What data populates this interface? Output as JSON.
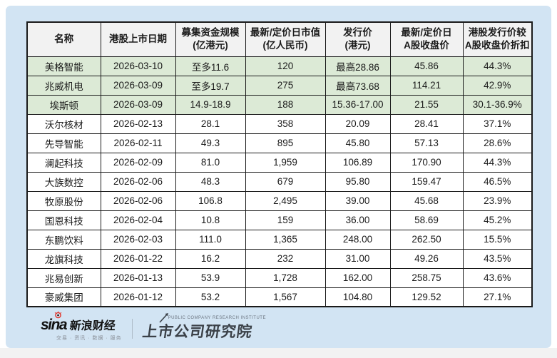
{
  "page": {
    "panel_bg": "#d2e4f3",
    "outer_bg": "#ffffff",
    "bottom_strip_bg": "#f2f2f2"
  },
  "chart_data": {
    "type": "table",
    "title": "",
    "header_bg": "#f2f2f2",
    "highlight_bg": "#dcead6",
    "border_color": "#1a1a1a",
    "columns": [
      {
        "key": "name",
        "line1": "名称",
        "line2": ""
      },
      {
        "key": "list-date",
        "line1": "港股上市日期",
        "line2": ""
      },
      {
        "key": "raise-scale",
        "line1": "募集资金规模",
        "line2": "(亿港元)"
      },
      {
        "key": "market-cap",
        "line1": "最新/定价日市值",
        "line2": "(亿人民币)"
      },
      {
        "key": "issue-price",
        "line1": "发行价",
        "line2": "(港元)"
      },
      {
        "key": "a-share-close",
        "line1": "最新/定价日",
        "line2": "A股收盘价"
      },
      {
        "key": "discount",
        "line1": "港股发行价较",
        "line2": "A股收盘价折扣"
      }
    ],
    "rows": [
      {
        "highlighted": true,
        "cells": [
          "美格智能",
          "2026-03-10",
          "至多11.6",
          "120",
          "最高28.86",
          "45.86",
          "44.3%"
        ]
      },
      {
        "highlighted": true,
        "cells": [
          "兆威机电",
          "2026-03-09",
          "至多19.7",
          "275",
          "最高73.68",
          "114.21",
          "42.9%"
        ]
      },
      {
        "highlighted": true,
        "cells": [
          "埃斯顿",
          "2026-03-09",
          "14.9-18.9",
          "188",
          "15.36-17.00",
          "21.55",
          "30.1-36.9%"
        ]
      },
      {
        "highlighted": false,
        "cells": [
          "沃尔核材",
          "2026-02-13",
          "28.1",
          "358",
          "20.09",
          "28.41",
          "37.1%"
        ]
      },
      {
        "highlighted": false,
        "cells": [
          "先导智能",
          "2026-02-11",
          "49.3",
          "895",
          "45.80",
          "57.13",
          "28.6%"
        ]
      },
      {
        "highlighted": false,
        "cells": [
          "澜起科技",
          "2026-02-09",
          "81.0",
          "1,959",
          "106.89",
          "170.90",
          "44.3%"
        ]
      },
      {
        "highlighted": false,
        "cells": [
          "大族数控",
          "2026-02-06",
          "48.3",
          "679",
          "95.80",
          "159.47",
          "46.5%"
        ]
      },
      {
        "highlighted": false,
        "cells": [
          "牧原股份",
          "2026-02-06",
          "106.8",
          "2,495",
          "39.00",
          "45.68",
          "23.9%"
        ]
      },
      {
        "highlighted": false,
        "cells": [
          "国恩科技",
          "2026-02-04",
          "10.8",
          "159",
          "36.00",
          "58.69",
          "45.2%"
        ]
      },
      {
        "highlighted": false,
        "cells": [
          "东鹏饮料",
          "2026-02-03",
          "111.0",
          "1,365",
          "248.00",
          "262.50",
          "15.5%"
        ]
      },
      {
        "highlighted": false,
        "cells": [
          "龙旗科技",
          "2026-01-22",
          "16.2",
          "232",
          "31.00",
          "49.26",
          "43.5%"
        ]
      },
      {
        "highlighted": false,
        "cells": [
          "兆易创新",
          "2026-01-13",
          "53.9",
          "1,728",
          "162.00",
          "258.75",
          "43.6%"
        ]
      },
      {
        "highlighted": false,
        "cells": [
          "豪威集团",
          "2026-01-12",
          "53.2",
          "1,567",
          "104.80",
          "129.52",
          "27.1%"
        ]
      }
    ]
  },
  "footer": {
    "sina_latin": "sina",
    "sina_cn": "新浪财经",
    "sina_tagline": "交易 · 资讯 · 数据 · 服务",
    "institute_en": "PUBLIC COMPANY RESEARCH INSTITUTE",
    "institute_cn": "上市公司研究院",
    "sina_red": "#e23126",
    "institute_color": "#3b4148"
  }
}
